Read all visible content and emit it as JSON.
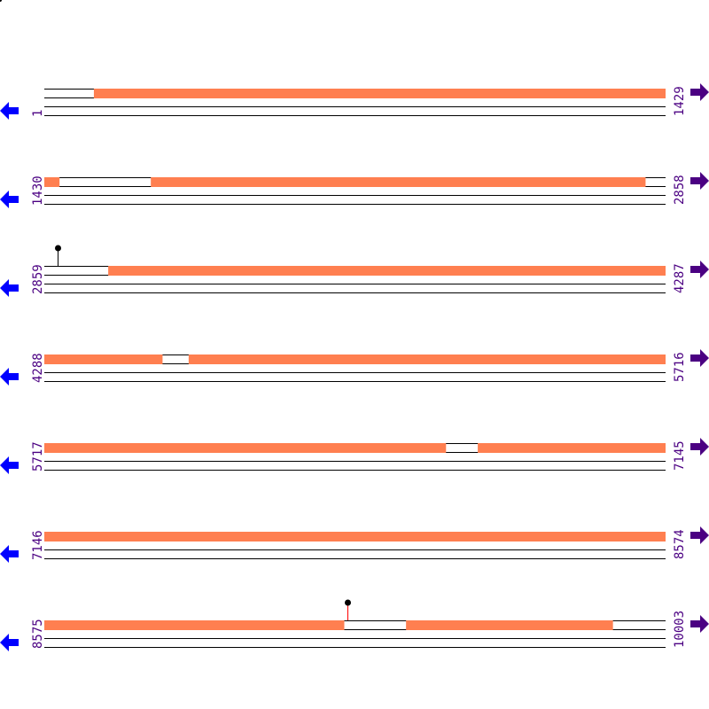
{
  "sequence": {
    "length": 10003,
    "bases_per_row": 1429,
    "rows": [
      {
        "start": "1",
        "end": "1429"
      },
      {
        "start": "1430",
        "end": "2858"
      },
      {
        "start": "2859",
        "end": "4287"
      },
      {
        "start": "4288",
        "end": "5716"
      },
      {
        "start": "5717",
        "end": "7145"
      },
      {
        "start": "7146",
        "end": "8574"
      },
      {
        "start": "8575",
        "end": "10003"
      }
    ],
    "features": [
      {
        "from": 115,
        "to": 1464
      },
      {
        "from": 1675,
        "to": 2812
      },
      {
        "from": 3006,
        "to": 4559
      },
      {
        "from": 4620,
        "to": 6640
      },
      {
        "from": 6714,
        "to": 9264
      },
      {
        "from": 9407,
        "to": 9882
      }
    ],
    "markers": [
      {
        "position": 2890,
        "color": "#000000"
      },
      {
        "position": 9272,
        "color": "#ff0000"
      }
    ]
  },
  "colors": {
    "feature": "#ff7f50",
    "label": "#4b0082",
    "reverse_arrow": "#0000ff",
    "forward_arrow": "#4b0082"
  },
  "icons": {
    "left": "arrow-left-icon",
    "right": "arrow-right-icon"
  }
}
